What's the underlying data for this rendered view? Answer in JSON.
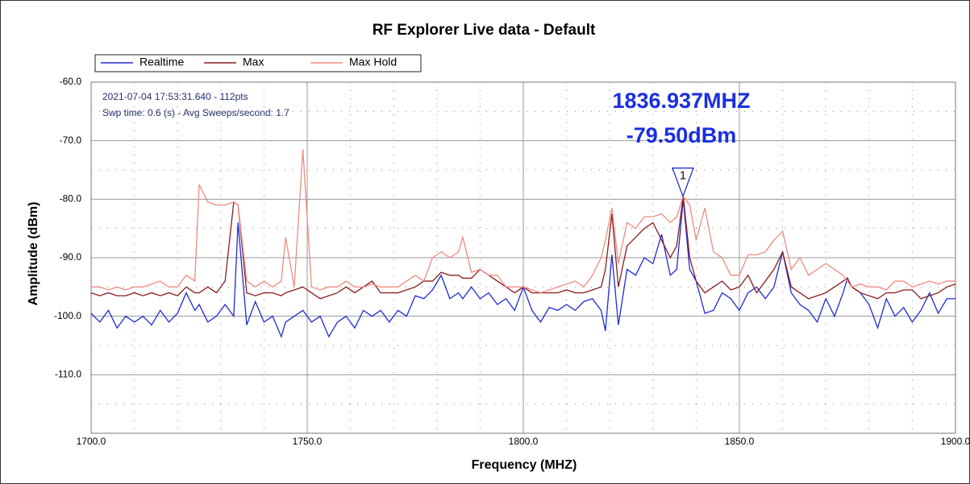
{
  "chart_data": {
    "type": "line",
    "title": "RF Explorer Live data - Default",
    "xlabel": "Frequency (MHZ)",
    "ylabel": "Amplitude (dBm)",
    "xlim": [
      1700,
      1900
    ],
    "ylim": [
      -120,
      -60
    ],
    "xticks": [
      {
        "value": 1700,
        "label": "1700.0"
      },
      {
        "value": 1750,
        "label": "1750.0"
      },
      {
        "value": 1800,
        "label": "1800.0"
      },
      {
        "value": 1850,
        "label": "1850.0"
      },
      {
        "value": 1900,
        "label": "1900.0"
      }
    ],
    "yticks": [
      {
        "value": -60,
        "label": "-60.0"
      },
      {
        "value": -70,
        "label": "-70.0"
      },
      {
        "value": -80,
        "label": "-80.0"
      },
      {
        "value": -90,
        "label": "-90.0"
      },
      {
        "value": -100,
        "label": "-100.0"
      },
      {
        "value": -110,
        "label": "-110.0"
      }
    ],
    "grid": true,
    "annotations": [
      "2021-07-04 17:53:31.640 - 112pts",
      "Swp time: 0.6 (s) - Avg Sweeps/second: 1.7"
    ],
    "marker": {
      "label": "1",
      "x": 1836.937,
      "y": -79.5,
      "x_label": "1836.937MHZ",
      "y_label": "-79.50dBm"
    },
    "x": [
      1700,
      1702,
      1704,
      1706,
      1708,
      1710,
      1712,
      1714,
      1716,
      1718,
      1720,
      1722,
      1724,
      1725,
      1727,
      1729,
      1731,
      1733,
      1734,
      1736,
      1738,
      1740,
      1742,
      1744,
      1745,
      1747,
      1749,
      1751,
      1753,
      1755,
      1757,
      1759,
      1761,
      1763,
      1765,
      1767,
      1769,
      1771,
      1773,
      1775,
      1777,
      1779,
      1781,
      1783,
      1785,
      1786,
      1788,
      1790,
      1792,
      1794,
      1796,
      1798,
      1800,
      1802,
      1804,
      1806,
      1808,
      1810,
      1812,
      1814,
      1816,
      1818,
      1819,
      1820.5,
      1822,
      1824,
      1826,
      1828,
      1830,
      1832,
      1834,
      1835.5,
      1837,
      1838.5,
      1840,
      1842,
      1844,
      1846,
      1848,
      1850,
      1852,
      1854,
      1856,
      1858,
      1860,
      1862,
      1864,
      1866,
      1868,
      1870,
      1872,
      1874,
      1875,
      1876,
      1878,
      1880,
      1882,
      1884,
      1886,
      1888,
      1890,
      1892,
      1894,
      1896,
      1898,
      1900
    ],
    "series": [
      {
        "name": "Realtime",
        "color": "#1f2bd8",
        "values": [
          -99.5,
          -101,
          -99,
          -102,
          -100,
          -101,
          -100,
          -101.5,
          -99,
          -101,
          -99.5,
          -96,
          -99,
          -98,
          -101,
          -100,
          -98,
          -100,
          -84,
          -101.5,
          -97.5,
          -101,
          -100,
          -103.5,
          -101,
          -100,
          -99,
          -101,
          -100,
          -103.5,
          -101,
          -100,
          -102,
          -99,
          -100,
          -99,
          -101,
          -99,
          -100,
          -96.5,
          -97,
          -95.5,
          -93,
          -97,
          -96,
          -97,
          -95,
          -97,
          -96,
          -98,
          -97,
          -99,
          -95,
          -99,
          -101,
          -98.5,
          -99,
          -98,
          -99,
          -97.5,
          -97,
          -99,
          -102.5,
          -89.5,
          -101.5,
          -92,
          -93,
          -90,
          -91,
          -86,
          -93,
          -92,
          -80,
          -92,
          -94,
          -99.5,
          -99,
          -96,
          -97,
          -99,
          -96,
          -95,
          -97,
          -95,
          -89,
          -96,
          -98,
          -99,
          -101,
          -97,
          -100,
          -96,
          -93.5,
          -95,
          -96,
          -98,
          -102,
          -97,
          -100,
          -98.5,
          -101,
          -99,
          -96,
          -99.5,
          -97,
          -97
        ]
      },
      {
        "name": "Max",
        "color": "#8b1c1c",
        "values": [
          -96,
          -96.5,
          -96,
          -96.5,
          -96.5,
          -96,
          -96.5,
          -96,
          -96.5,
          -96,
          -96.5,
          -95,
          -96,
          -96,
          -95,
          -96,
          -94,
          -80.5,
          -81,
          -96,
          -96.5,
          -96,
          -96,
          -96.5,
          -96,
          -95.5,
          -95,
          -96,
          -97,
          -96.5,
          -96,
          -95,
          -96,
          -95,
          -94,
          -96,
          -96,
          -96,
          -95.5,
          -95,
          -94,
          -94,
          -92.5,
          -93,
          -93,
          -93.5,
          -93.5,
          -92,
          -93,
          -94,
          -95,
          -96,
          -95,
          -96,
          -96,
          -96,
          -96,
          -95.5,
          -96,
          -96,
          -95.5,
          -95,
          -92,
          -82.5,
          -95,
          -88,
          -86.5,
          -85,
          -84,
          -87,
          -90,
          -88,
          -79.5,
          -90,
          -94,
          -96,
          -95,
          -94,
          -95.5,
          -95,
          -93,
          -96,
          -94,
          -92,
          -89,
          -95,
          -96,
          -97,
          -96.5,
          -96,
          -95,
          -94,
          -93.5,
          -95,
          -96,
          -96.5,
          -97,
          -96,
          -96,
          -95.5,
          -95.5,
          -97,
          -96.5,
          -96,
          -95,
          -94.5
        ]
      },
      {
        "name": "Max Hold",
        "color": "#f08a80",
        "values": [
          -95,
          -95,
          -95.5,
          -95,
          -95.5,
          -95,
          -95,
          -94.5,
          -94,
          -95,
          -95,
          -93,
          -94,
          -77.5,
          -80.5,
          -81,
          -81,
          -80.5,
          -81,
          -94,
          -95,
          -94,
          -95,
          -94,
          -86.5,
          -95,
          -71.5,
          -95,
          -95.5,
          -95,
          -95,
          -94,
          -95,
          -95,
          -94.5,
          -95,
          -95,
          -95,
          -94,
          -93,
          -94,
          -90,
          -89,
          -90,
          -89,
          -86.5,
          -92.5,
          -92,
          -93,
          -93,
          -95,
          -95,
          -95,
          -95.5,
          -96,
          -95.5,
          -95,
          -94.5,
          -94,
          -95,
          -93,
          -90,
          -87,
          -81.5,
          -91,
          -84,
          -85,
          -83,
          -83,
          -82.5,
          -84,
          -83,
          -79.5,
          -81,
          -87,
          -81.5,
          -89,
          -90,
          -93,
          -93,
          -89.5,
          -89.5,
          -89,
          -87,
          -85.5,
          -92,
          -90,
          -93,
          -92,
          -91,
          -92,
          -93,
          -94,
          -95,
          -94.5,
          -95,
          -95,
          -95.5,
          -94,
          -94,
          -95,
          -94.5,
          -94,
          -94.5,
          -94,
          -94
        ]
      }
    ]
  }
}
